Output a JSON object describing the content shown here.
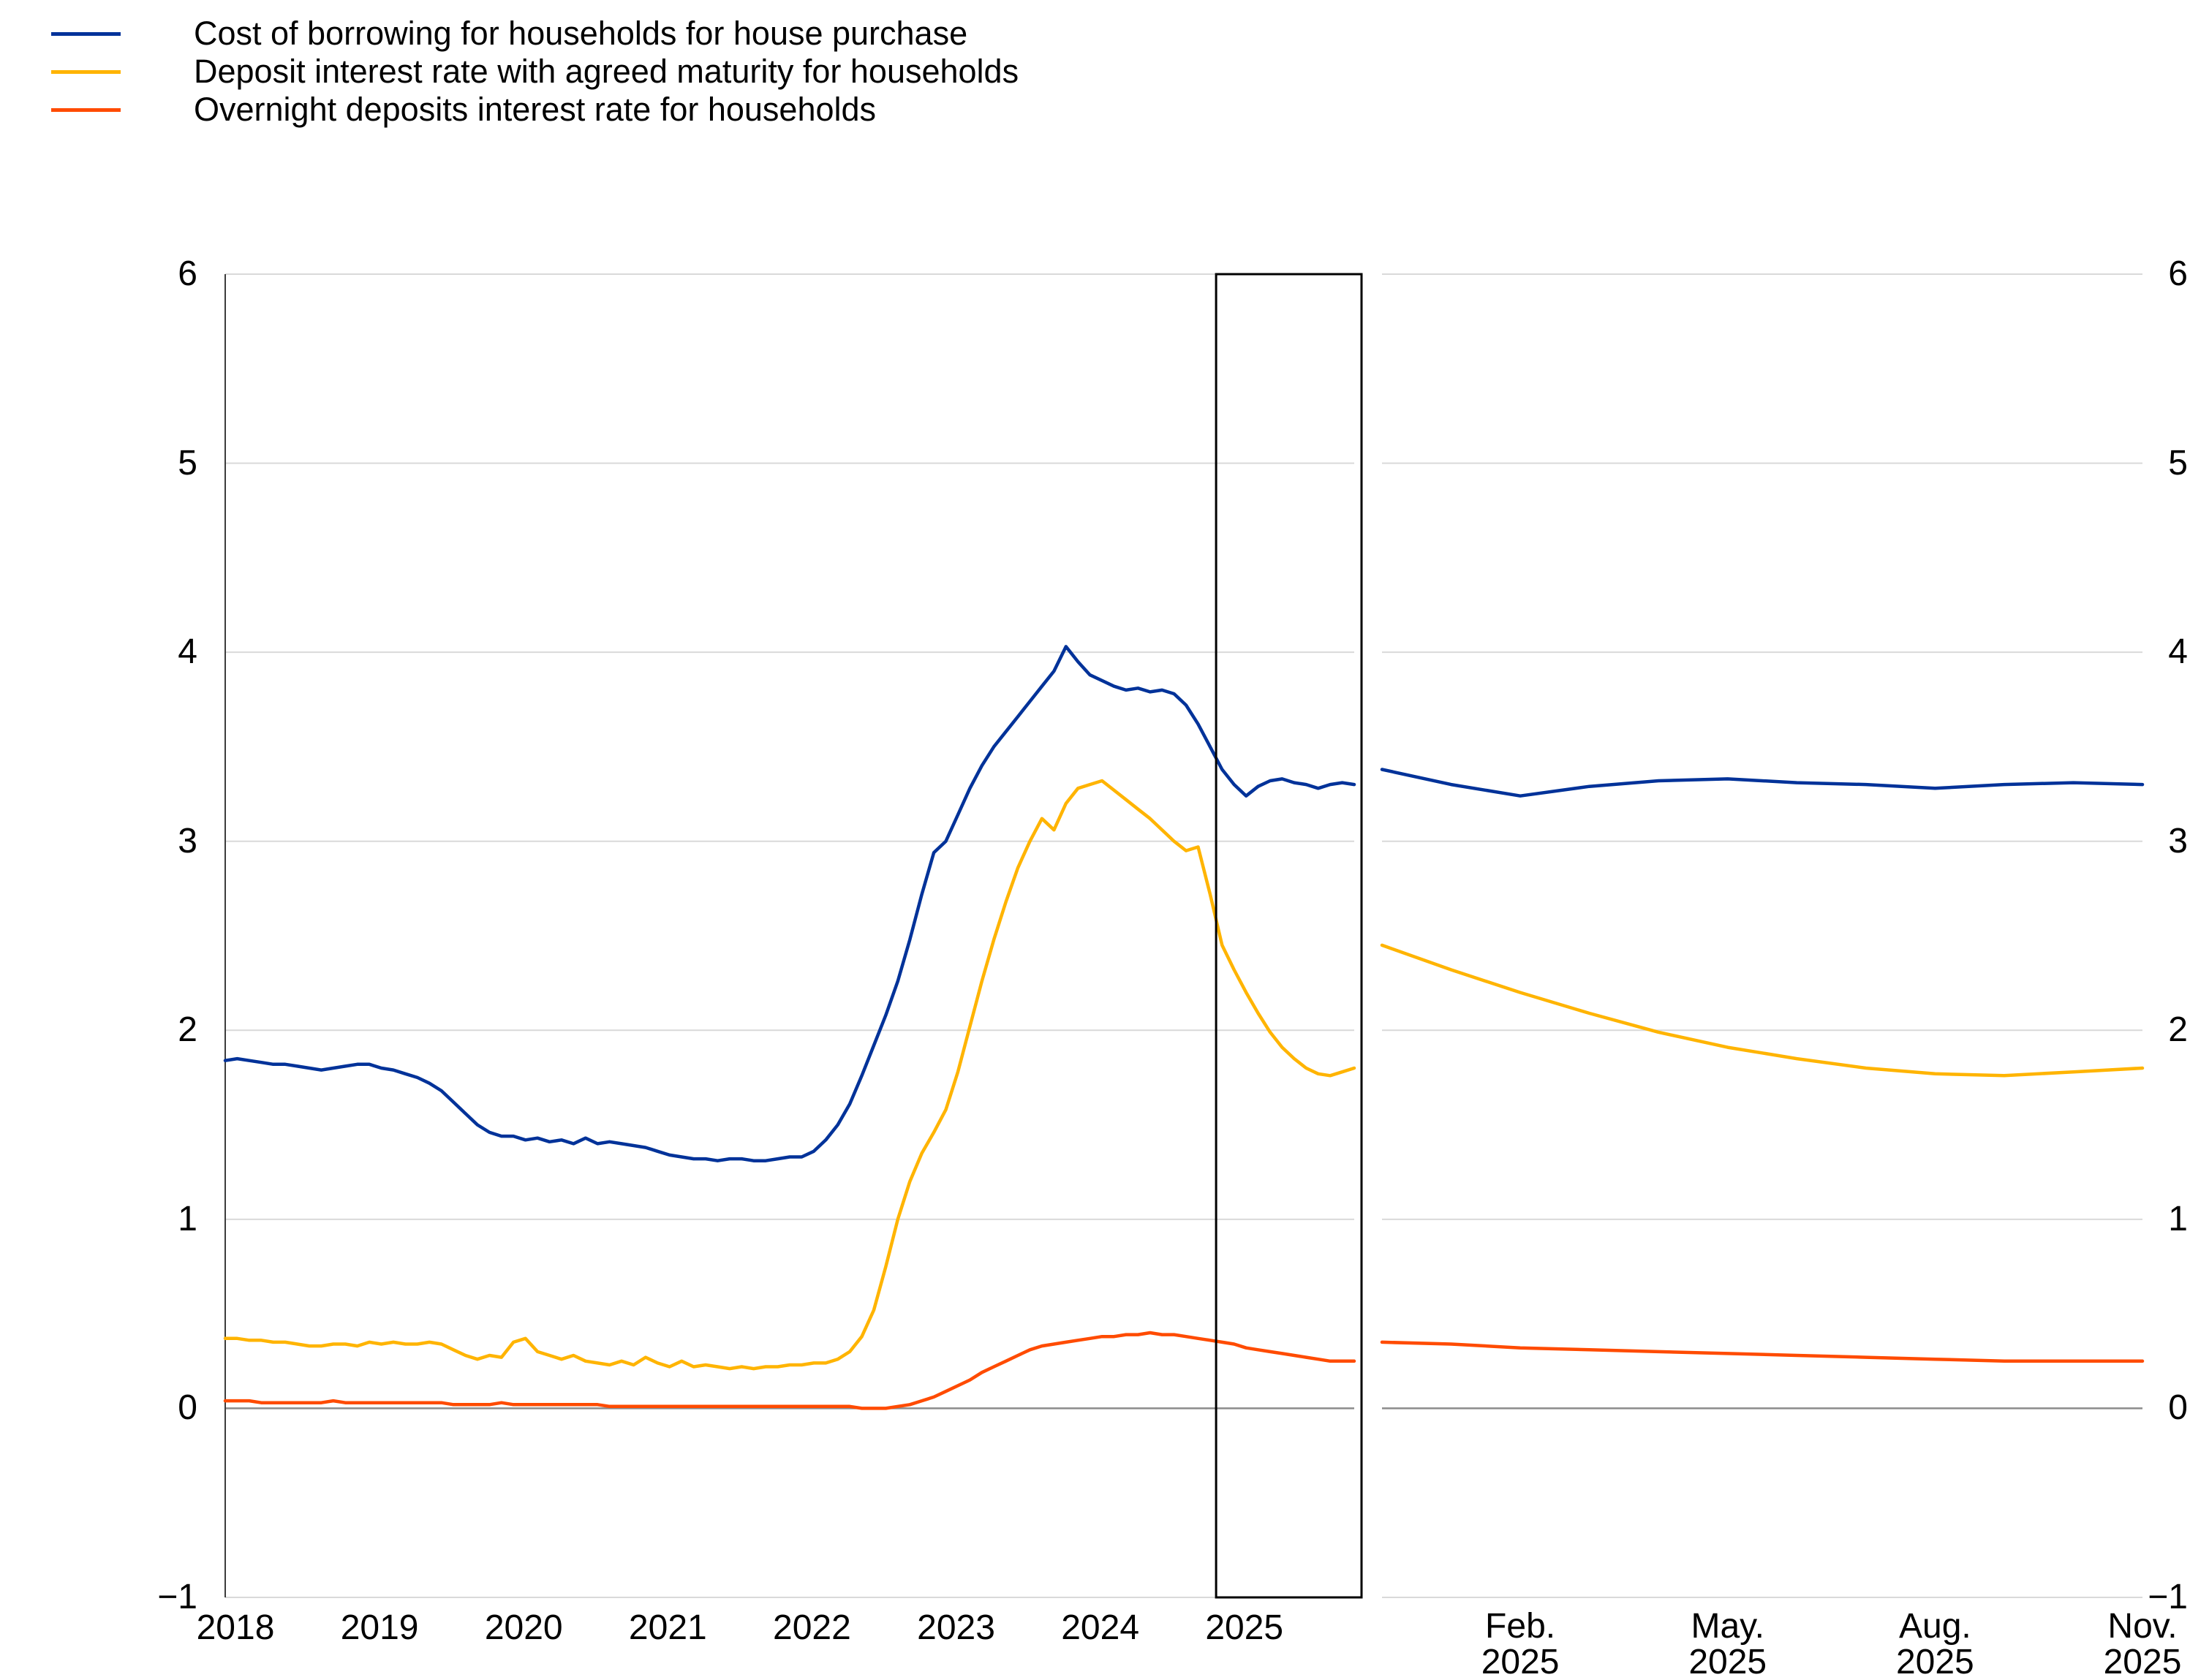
{
  "page": {
    "background": "#ffffff"
  },
  "legend": {
    "items": [
      {
        "id": "cost-of-borrowing",
        "label": "Cost of borrowing for households for house purchase",
        "color": "#003299"
      },
      {
        "id": "deposit-agreed-maturity",
        "label": "Deposit interest rate with agreed maturity for households",
        "color": "#ffb400"
      },
      {
        "id": "overnight-deposits",
        "label": "Overnight deposits interest rate for households",
        "color": "#ff4b00"
      }
    ]
  },
  "chart_data": {
    "type": "line",
    "grid": true,
    "y_axis": {
      "min": -1,
      "max": 6,
      "ticks": [
        -1,
        0,
        1,
        2,
        3,
        4,
        5,
        6
      ],
      "label_sides": "both"
    },
    "colors": {
      "gridline": "#d9d9d9",
      "zero_line": "#8c8c8c",
      "axis_spine": "#3c3c3c",
      "highlight_box": "#000000"
    },
    "panels": [
      {
        "id": "history-panel",
        "x_unit": "month",
        "x_range": "Jan 2018 - Nov 2025",
        "x_tick_labels": [
          "2018",
          "2019",
          "2020",
          "2021",
          "2022",
          "2023",
          "2024",
          "2025"
        ],
        "x_tick_month_indices": [
          0,
          12,
          24,
          36,
          48,
          60,
          72,
          84
        ],
        "highlight_box": {
          "from": "Dec 2024",
          "to": "Nov 2025",
          "last_n_months": 12
        },
        "series": [
          {
            "id": "cost-of-borrowing",
            "name": "Cost of borrowing for households for house purchase",
            "color": "#003299",
            "values": [
              1.84,
              1.85,
              1.84,
              1.83,
              1.82,
              1.82,
              1.81,
              1.8,
              1.79,
              1.8,
              1.81,
              1.82,
              1.82,
              1.8,
              1.79,
              1.77,
              1.75,
              1.72,
              1.68,
              1.62,
              1.56,
              1.5,
              1.46,
              1.44,
              1.44,
              1.42,
              1.43,
              1.41,
              1.42,
              1.4,
              1.43,
              1.4,
              1.41,
              1.4,
              1.39,
              1.38,
              1.36,
              1.34,
              1.33,
              1.32,
              1.32,
              1.31,
              1.32,
              1.32,
              1.31,
              1.31,
              1.32,
              1.33,
              1.33,
              1.36,
              1.42,
              1.5,
              1.61,
              1.76,
              1.92,
              2.08,
              2.26,
              2.48,
              2.72,
              2.94,
              3.0,
              3.14,
              3.28,
              3.4,
              3.5,
              3.58,
              3.66,
              3.74,
              3.82,
              3.9,
              4.03,
              3.95,
              3.88,
              3.85,
              3.82,
              3.8,
              3.81,
              3.79,
              3.8,
              3.78,
              3.72,
              3.62,
              3.5,
              3.38,
              3.3,
              3.24,
              3.29,
              3.32,
              3.33,
              3.31,
              3.3,
              3.28,
              3.3,
              3.31,
              3.3
            ]
          },
          {
            "id": "deposit-agreed-maturity",
            "name": "Deposit interest rate with agreed maturity for households",
            "color": "#ffb400",
            "values": [
              0.37,
              0.37,
              0.36,
              0.36,
              0.35,
              0.35,
              0.34,
              0.33,
              0.33,
              0.34,
              0.34,
              0.33,
              0.35,
              0.34,
              0.35,
              0.34,
              0.34,
              0.35,
              0.34,
              0.31,
              0.28,
              0.26,
              0.28,
              0.27,
              0.35,
              0.37,
              0.3,
              0.28,
              0.26,
              0.28,
              0.25,
              0.24,
              0.23,
              0.25,
              0.23,
              0.27,
              0.24,
              0.22,
              0.25,
              0.22,
              0.23,
              0.22,
              0.21,
              0.22,
              0.21,
              0.22,
              0.22,
              0.23,
              0.23,
              0.24,
              0.24,
              0.26,
              0.3,
              0.38,
              0.52,
              0.75,
              1.0,
              1.2,
              1.35,
              1.46,
              1.58,
              1.78,
              2.02,
              2.26,
              2.48,
              2.68,
              2.86,
              3.0,
              3.12,
              3.06,
              3.2,
              3.28,
              3.3,
              3.32,
              3.27,
              3.22,
              3.17,
              3.12,
              3.06,
              3.0,
              2.95,
              2.97,
              2.72,
              2.45,
              2.32,
              2.2,
              2.09,
              1.99,
              1.91,
              1.85,
              1.8,
              1.77,
              1.76,
              1.78,
              1.8
            ]
          },
          {
            "id": "overnight-deposits",
            "name": "Overnight deposits interest rate for households",
            "color": "#ff4b00",
            "values": [
              0.04,
              0.04,
              0.04,
              0.03,
              0.03,
              0.03,
              0.03,
              0.03,
              0.03,
              0.04,
              0.03,
              0.03,
              0.03,
              0.03,
              0.03,
              0.03,
              0.03,
              0.03,
              0.03,
              0.02,
              0.02,
              0.02,
              0.02,
              0.03,
              0.02,
              0.02,
              0.02,
              0.02,
              0.02,
              0.02,
              0.02,
              0.02,
              0.01,
              0.01,
              0.01,
              0.01,
              0.01,
              0.01,
              0.01,
              0.01,
              0.01,
              0.01,
              0.01,
              0.01,
              0.01,
              0.01,
              0.01,
              0.01,
              0.01,
              0.01,
              0.01,
              0.01,
              0.01,
              0.0,
              0.0,
              0.0,
              0.01,
              0.02,
              0.04,
              0.06,
              0.09,
              0.12,
              0.15,
              0.19,
              0.22,
              0.25,
              0.28,
              0.31,
              0.33,
              0.34,
              0.35,
              0.36,
              0.37,
              0.38,
              0.38,
              0.39,
              0.39,
              0.4,
              0.39,
              0.39,
              0.38,
              0.37,
              0.36,
              0.35,
              0.34,
              0.32,
              0.31,
              0.3,
              0.29,
              0.28,
              0.27,
              0.26,
              0.25,
              0.25,
              0.25
            ]
          }
        ]
      },
      {
        "id": "zoom-panel",
        "x_unit": "month",
        "x_range": "Dec 2024 - Nov 2025",
        "x_tick_labels": [
          [
            "Feb.",
            "2025"
          ],
          [
            "May.",
            "2025"
          ],
          [
            "Aug.",
            "2025"
          ],
          [
            "Nov.",
            "2025"
          ]
        ],
        "x_tick_month_indices": [
          2,
          5,
          8,
          11
        ],
        "series": [
          {
            "id": "cost-of-borrowing",
            "name": "Cost of borrowing for households for house purchase",
            "color": "#003299",
            "values": [
              3.38,
              3.3,
              3.24,
              3.29,
              3.32,
              3.33,
              3.31,
              3.3,
              3.28,
              3.3,
              3.31,
              3.3
            ]
          },
          {
            "id": "deposit-agreed-maturity",
            "name": "Deposit interest rate with agreed maturity for households",
            "color": "#ffb400",
            "values": [
              2.45,
              2.32,
              2.2,
              2.09,
              1.99,
              1.91,
              1.85,
              1.8,
              1.77,
              1.76,
              1.78,
              1.8
            ]
          },
          {
            "id": "overnight-deposits",
            "name": "Overnight deposits interest rate for households",
            "color": "#ff4b00",
            "values": [
              0.35,
              0.34,
              0.32,
              0.31,
              0.3,
              0.29,
              0.28,
              0.27,
              0.26,
              0.25,
              0.25,
              0.25
            ]
          }
        ]
      }
    ]
  }
}
